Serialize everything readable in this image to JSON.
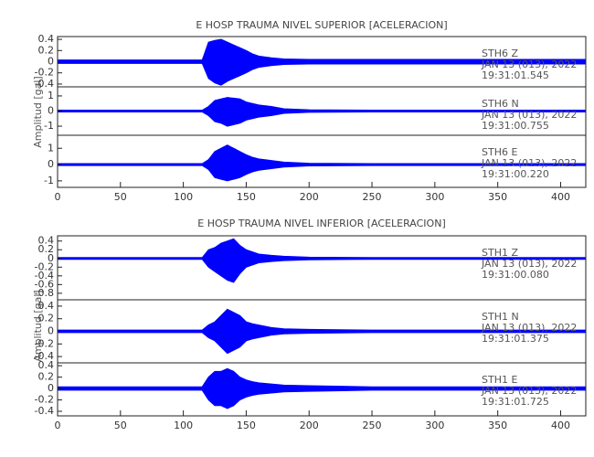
{
  "chart_data": [
    {
      "type": "band",
      "title": "E HOSP TRAUMA NIVEL SUPERIOR [ACELERACION]",
      "y_label": "Amplitud [gal]",
      "xlim": [
        0,
        420
      ],
      "xticks": [
        0,
        50,
        100,
        150,
        200,
        250,
        300,
        350,
        400
      ],
      "panels": [
        {
          "station": "STH6   Z",
          "date": "JAN 13 (013), 2022",
          "time": "19:31:01.545",
          "ylim": [
            -0.45,
            0.45
          ],
          "yticks": [
            -0.4,
            -0.2,
            0.0,
            0.2,
            0.4
          ],
          "x": [
            0,
            40,
            80,
            115,
            120,
            125,
            130,
            135,
            140,
            145,
            150,
            155,
            160,
            170,
            180,
            200,
            250,
            300,
            350,
            420
          ],
          "series": [
            {
              "color": "#0000ff",
              "values": [
                0.03,
                0.03,
                0.03,
                0.03,
                0.35,
                0.38,
                0.4,
                0.35,
                0.3,
                0.25,
                0.2,
                0.14,
                0.1,
                0.07,
                0.05,
                0.04,
                0.04,
                0.04,
                0.04,
                0.04
              ]
            },
            {
              "color": "#0000ff",
              "values": [
                -0.03,
                -0.03,
                -0.03,
                -0.03,
                -0.3,
                -0.38,
                -0.42,
                -0.35,
                -0.3,
                -0.25,
                -0.2,
                -0.14,
                -0.1,
                -0.07,
                -0.05,
                -0.04,
                -0.04,
                -0.04,
                -0.04,
                -0.04
              ]
            }
          ]
        },
        {
          "station": "STH6   N",
          "date": "JAN 13 (013), 2022",
          "time": "19:31:00.755",
          "ylim": [
            -1.6,
            1.6
          ],
          "yticks": [
            -1,
            0,
            1
          ],
          "x": [
            0,
            40,
            80,
            115,
            120,
            125,
            130,
            135,
            140,
            145,
            150,
            155,
            160,
            170,
            180,
            200,
            250,
            300,
            350,
            420
          ],
          "series": [
            {
              "color": "#0000ff",
              "values": [
                0.06,
                0.06,
                0.06,
                0.06,
                0.3,
                0.7,
                0.8,
                0.9,
                0.85,
                0.8,
                0.6,
                0.5,
                0.4,
                0.3,
                0.15,
                0.08,
                0.06,
                0.06,
                0.06,
                0.06
              ]
            },
            {
              "color": "#0000ff",
              "values": [
                -0.06,
                -0.06,
                -0.06,
                -0.06,
                -0.3,
                -0.7,
                -0.8,
                -1.0,
                -0.9,
                -0.8,
                -0.6,
                -0.5,
                -0.4,
                -0.3,
                -0.15,
                -0.08,
                -0.06,
                -0.06,
                -0.06,
                -0.06
              ]
            }
          ]
        },
        {
          "station": "STH6   E",
          "date": "JAN 13 (013), 2022",
          "time": "19:31:00.220",
          "ylim": [
            -1.4,
            1.8
          ],
          "yticks": [
            -1,
            0,
            1
          ],
          "x": [
            0,
            40,
            80,
            115,
            120,
            125,
            130,
            135,
            140,
            145,
            150,
            155,
            160,
            170,
            180,
            200,
            250,
            300,
            350,
            420
          ],
          "series": [
            {
              "color": "#0000ff",
              "values": [
                0.06,
                0.06,
                0.06,
                0.06,
                0.3,
                0.8,
                1.0,
                1.2,
                1.0,
                0.8,
                0.6,
                0.45,
                0.35,
                0.25,
                0.15,
                0.08,
                0.06,
                0.06,
                0.06,
                0.06
              ]
            },
            {
              "color": "#0000ff",
              "values": [
                -0.06,
                -0.06,
                -0.06,
                -0.06,
                -0.3,
                -0.8,
                -0.9,
                -1.0,
                -0.9,
                -0.8,
                -0.6,
                -0.45,
                -0.35,
                -0.25,
                -0.15,
                -0.08,
                -0.06,
                -0.06,
                -0.06,
                -0.06
              ]
            }
          ]
        }
      ]
    },
    {
      "type": "band",
      "title": "E HOSP TRAUMA NIVEL INFERIOR [ACELERACION]",
      "y_label": "Amplitud [gal]",
      "xlim": [
        0,
        420
      ],
      "xticks": [
        0,
        50,
        100,
        150,
        200,
        250,
        300,
        350,
        400
      ],
      "panels": [
        {
          "station": "STH1   Z",
          "date": "JAN 13 (013), 2022",
          "time": "19:31:00.080",
          "ylim": [
            -0.95,
            0.52
          ],
          "yticks": [
            -0.8,
            -0.6,
            -0.4,
            -0.2,
            0.0,
            0.2,
            0.4
          ],
          "x": [
            0,
            40,
            80,
            115,
            120,
            125,
            130,
            135,
            140,
            145,
            150,
            155,
            160,
            170,
            180,
            200,
            250,
            300,
            350,
            420
          ],
          "series": [
            {
              "color": "#0000ff",
              "values": [
                0.02,
                0.02,
                0.02,
                0.02,
                0.2,
                0.25,
                0.35,
                0.4,
                0.45,
                0.3,
                0.2,
                0.15,
                0.1,
                0.07,
                0.05,
                0.03,
                0.02,
                0.02,
                0.02,
                0.02
              ]
            },
            {
              "color": "#0000ff",
              "values": [
                -0.02,
                -0.02,
                -0.02,
                -0.02,
                -0.2,
                -0.3,
                -0.4,
                -0.5,
                -0.55,
                -0.35,
                -0.2,
                -0.15,
                -0.1,
                -0.07,
                -0.05,
                -0.03,
                -0.02,
                -0.02,
                -0.02,
                -0.02
              ]
            }
          ]
        },
        {
          "station": "STH1   N",
          "date": "JAN 13 (013), 2022",
          "time": "19:31:01.375",
          "ylim": [
            -0.5,
            0.5
          ],
          "yticks": [
            -0.4,
            -0.2,
            0.0,
            0.2,
            0.4
          ],
          "x": [
            0,
            40,
            80,
            115,
            120,
            125,
            130,
            135,
            140,
            145,
            150,
            155,
            160,
            170,
            180,
            200,
            250,
            300,
            350,
            420
          ],
          "series": [
            {
              "color": "#0000ff",
              "values": [
                0.02,
                0.02,
                0.02,
                0.02,
                0.1,
                0.15,
                0.25,
                0.35,
                0.3,
                0.25,
                0.15,
                0.12,
                0.1,
                0.06,
                0.04,
                0.03,
                0.02,
                0.02,
                0.02,
                0.02
              ]
            },
            {
              "color": "#0000ff",
              "values": [
                -0.02,
                -0.02,
                -0.02,
                -0.02,
                -0.1,
                -0.15,
                -0.25,
                -0.35,
                -0.3,
                -0.25,
                -0.15,
                -0.12,
                -0.1,
                -0.06,
                -0.04,
                -0.03,
                -0.02,
                -0.02,
                -0.02,
                -0.02
              ]
            }
          ]
        },
        {
          "station": "STH1   E",
          "date": "JAN 13 (013), 2022",
          "time": "19:31:01.725",
          "ylim": [
            -0.48,
            0.45
          ],
          "yticks": [
            -0.4,
            -0.2,
            0.0,
            0.2,
            0.4
          ],
          "x": [
            0,
            40,
            80,
            115,
            120,
            125,
            130,
            135,
            140,
            145,
            150,
            155,
            160,
            170,
            180,
            200,
            250,
            300,
            350,
            420
          ],
          "series": [
            {
              "color": "#0000ff",
              "values": [
                0.03,
                0.03,
                0.03,
                0.03,
                0.2,
                0.3,
                0.3,
                0.35,
                0.3,
                0.2,
                0.15,
                0.12,
                0.1,
                0.08,
                0.06,
                0.05,
                0.03,
                0.03,
                0.03,
                0.03
              ]
            },
            {
              "color": "#0000ff",
              "values": [
                -0.03,
                -0.03,
                -0.03,
                -0.03,
                -0.2,
                -0.3,
                -0.3,
                -0.35,
                -0.3,
                -0.2,
                -0.15,
                -0.12,
                -0.1,
                -0.08,
                -0.06,
                -0.05,
                -0.03,
                -0.03,
                -0.03,
                -0.03
              ]
            }
          ]
        }
      ]
    }
  ]
}
